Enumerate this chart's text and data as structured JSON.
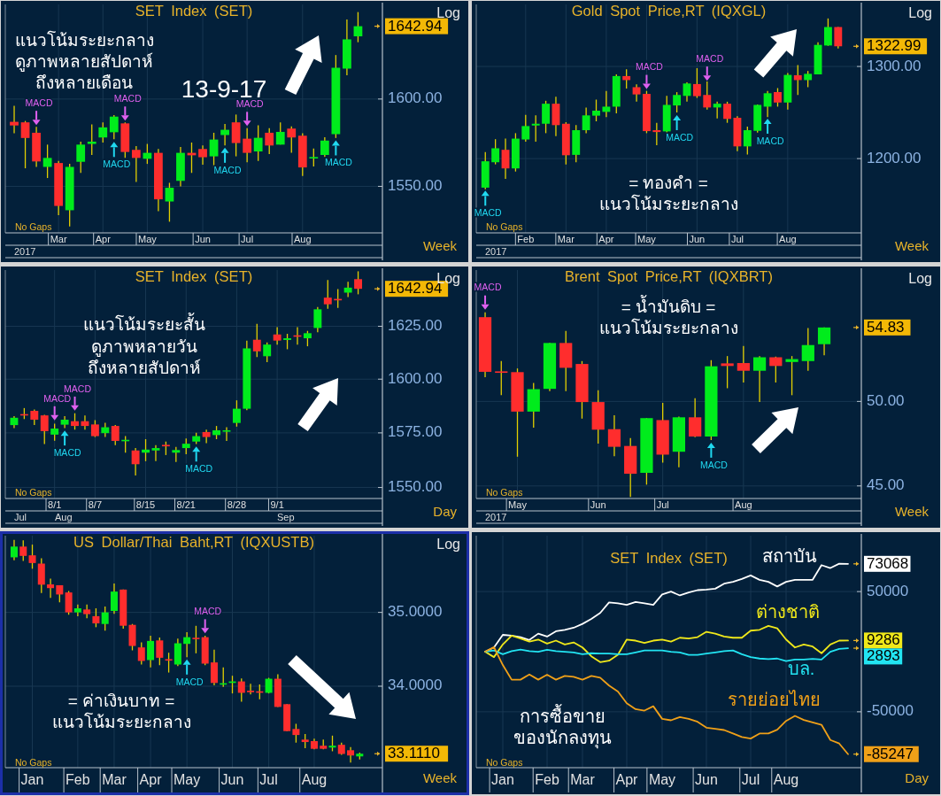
{
  "chart_data": [
    {
      "type": "candlestick",
      "title": "SET Index (SET)",
      "ylabel": "Log",
      "xlabel": "Week",
      "log": true,
      "grid": true,
      "marker": "triangle",
      "ylim": [
        1524,
        1656
      ],
      "yticks": [
        {
          "value": 1550,
          "label": "1550.00"
        },
        {
          "value": 1600,
          "label": "1600.00"
        }
      ],
      "categories": [
        null,
        null,
        null,
        null,
        "Mar",
        null,
        null,
        null,
        "Apr",
        null,
        null,
        null,
        "May",
        null,
        null,
        null,
        null,
        "Jun",
        null,
        null,
        null,
        "Jul",
        null,
        null,
        null,
        null,
        "Aug",
        null,
        null,
        null,
        null,
        null
      ],
      "ohlc": [
        [
          1586.8,
          1596.1,
          1580.2,
          1584.7
        ],
        [
          1586.5,
          1587.3,
          1560.2,
          1577.5
        ],
        [
          1580.5,
          1583.9,
          1561.0,
          1564.1
        ],
        [
          1561.0,
          1573.7,
          1554.7,
          1566.1
        ],
        [
          1563.2,
          1564.4,
          1533.9,
          1539.0
        ],
        [
          1536.6,
          1562.7,
          1527.6,
          1561.0
        ],
        [
          1563.9,
          1575.4,
          1557.6,
          1573.7
        ],
        [
          1574.1,
          1585.3,
          1567.8,
          1575.4
        ],
        [
          1577.8,
          1586.5,
          1574.9,
          1583.6
        ],
        [
          1580.8,
          1590.7,
          1576.8,
          1589.8
        ],
        [
          1585.9,
          1586.5,
          1566.1,
          1569.5
        ],
        [
          1570.7,
          1572.9,
          1552.5,
          1566.1
        ],
        [
          1565.6,
          1574.1,
          1562.7,
          1569.0
        ],
        [
          1569.0,
          1571.2,
          1536.1,
          1542.7
        ],
        [
          1541.5,
          1552.0,
          1530.2,
          1549.2
        ],
        [
          1553.1,
          1572.4,
          1550.0,
          1569.0
        ],
        [
          1569.0,
          1574.9,
          1557.6,
          1567.6
        ],
        [
          1571.2,
          1573.2,
          1562.2,
          1566.5
        ],
        [
          1567.0,
          1580.5,
          1560.5,
          1576.6
        ],
        [
          1579.2,
          1585.6,
          1573.2,
          1582.2
        ],
        [
          1586.5,
          1591.0,
          1567.0,
          1574.6
        ],
        [
          1577.1,
          1583.1,
          1563.6,
          1569.0
        ],
        [
          1569.8,
          1584.8,
          1564.4,
          1577.6
        ],
        [
          1580.5,
          1583.1,
          1568.3,
          1573.2
        ],
        [
          1573.7,
          1586.5,
          1573.7,
          1581.0
        ],
        [
          1582.9,
          1584.2,
          1569.0,
          1577.8
        ],
        [
          1578.8,
          1580.2,
          1555.9,
          1560.7
        ],
        [
          1565.8,
          1571.5,
          1561.3,
          1566.6
        ],
        [
          1567.8,
          1577.9,
          1566.6,
          1576.0
        ],
        [
          1579.7,
          1625.8,
          1577.5,
          1618.3
        ],
        [
          1617.8,
          1647.0,
          1613.9,
          1635.1
        ],
        [
          1636.9,
          1651.4,
          1633.4,
          1642.94
        ]
      ],
      "series": [
        {
          "type": "scatter",
          "name": "MACD",
          "color": "#e060f0",
          "values": [
            null,
            null,
            1586.5,
            null,
            null,
            null,
            null,
            null,
            null,
            null,
            1589.0,
            null,
            null,
            null,
            null,
            null,
            null,
            null,
            null,
            null,
            null,
            1585.9,
            null,
            null,
            null,
            null,
            null,
            null,
            null,
            null,
            null,
            null
          ]
        },
        {
          "type": "scatter",
          "name": "MACD",
          "color": "#20d8f0",
          "values": [
            null,
            null,
            null,
            null,
            null,
            null,
            null,
            null,
            null,
            1573.7,
            null,
            null,
            null,
            null,
            null,
            null,
            null,
            null,
            null,
            1570.4,
            null,
            null,
            null,
            null,
            null,
            null,
            null,
            null,
            null,
            1574.6,
            null,
            null
          ]
        }
      ],
      "annotations": [
        "แนวโน้มระยะกลาง",
        "ดูภาพหลายสัปดาห์",
        "ถึงหลายเดือน",
        "13-9-17",
        "No Gaps",
        "2017",
        "1642.94"
      ]
    },
    {
      "type": "candlestick",
      "title": "Gold Spot Price,RT (IQXGL)",
      "ylabel": "Log",
      "xlabel": "Week",
      "log": true,
      "grid": true,
      "marker": "triangle",
      "ylim": [
        1125,
        1372
      ],
      "yticks": [
        {
          "value": 1200,
          "label": "1200.00"
        },
        {
          "value": 1300,
          "label": "1300.00"
        }
      ],
      "categories": [
        null,
        null,
        null,
        null,
        "Feb",
        null,
        null,
        null,
        "Mar",
        null,
        null,
        null,
        "Apr",
        null,
        null,
        null,
        "May",
        null,
        null,
        null,
        null,
        "Jun",
        null,
        null,
        null,
        "Jul",
        null,
        null,
        null,
        null,
        "Aug",
        null,
        null,
        null,
        null,
        null
      ],
      "ohlc": [
        [
          1170.1,
          1206.7,
          1168.5,
          1197.2
        ],
        [
          1196.2,
          1220.4,
          1194.0,
          1210.8
        ],
        [
          1209.2,
          1221.0,
          1179.0,
          1189.8
        ],
        [
          1189.8,
          1226.8,
          1186.6,
          1221.0
        ],
        [
          1220.1,
          1246.5,
          1217.8,
          1234.4
        ],
        [
          1235.0,
          1245.9,
          1217.8,
          1236.9
        ],
        [
          1236.9,
          1261.8,
          1226.8,
          1258.6
        ],
        [
          1258.6,
          1266.3,
          1223.6,
          1235.4
        ],
        [
          1236.9,
          1238.6,
          1193.9,
          1203.5
        ],
        [
          1203.9,
          1235.4,
          1196.2,
          1230.0
        ],
        [
          1230.0,
          1254.5,
          1226.8,
          1245.9
        ],
        [
          1245.6,
          1263.1,
          1239.5,
          1251.0
        ],
        [
          1249.7,
          1272.6,
          1244.0,
          1255.4
        ],
        [
          1255.4,
          1291.1,
          1248.1,
          1289.2
        ],
        [
          1289.2,
          1296.8,
          1275.2,
          1284.7
        ],
        [
          1276.8,
          1280.0,
          1260.8,
          1268.8
        ],
        [
          1269.4,
          1272.6,
          1226.8,
          1229.0
        ],
        [
          1230.0,
          1237.9,
          1214.0,
          1228.0
        ],
        [
          1228.7,
          1267.2,
          1227.4,
          1257.3
        ],
        [
          1256.7,
          1271.3,
          1249.1,
          1268.2
        ],
        [
          1267.2,
          1282.2,
          1260.8,
          1280.9
        ],
        [
          1280.3,
          1298.1,
          1265.0,
          1266.9
        ],
        [
          1268.2,
          1283.1,
          1252.3,
          1254.5
        ],
        [
          1254.5,
          1260.8,
          1242.7,
          1258.6
        ],
        [
          1258.6,
          1260.8,
          1237.9,
          1242.1
        ],
        [
          1243.3,
          1244.9,
          1207.7,
          1212.8
        ],
        [
          1212.8,
          1233.8,
          1204.2,
          1230.0
        ],
        [
          1229.3,
          1257.7,
          1227.4,
          1257.3
        ],
        [
          1255.4,
          1272.6,
          1244.0,
          1270.1
        ],
        [
          1271.4,
          1275.8,
          1255.4,
          1259.9
        ],
        [
          1259.9,
          1292.7,
          1252.3,
          1290.5
        ],
        [
          1290.1,
          1301.6,
          1268.2,
          1284.7
        ],
        [
          1284.7,
          1294.9,
          1276.8,
          1291.7
        ],
        [
          1291.1,
          1327.7,
          1291.1,
          1324.6
        ],
        [
          1323.9,
          1355.4,
          1323.6,
          1345.3
        ],
        [
          1345.3,
          1345.3,
          1320.4,
          1322.99
        ]
      ],
      "series": [
        {
          "type": "scatter",
          "name": "MACD",
          "color": "#e060f0",
          "values": [
            null,
            null,
            null,
            null,
            null,
            null,
            null,
            null,
            null,
            null,
            null,
            null,
            null,
            null,
            null,
            null,
            1277.7,
            null,
            null,
            null,
            null,
            null,
            1287.0,
            null,
            null,
            null,
            null,
            null,
            null,
            null,
            null,
            null,
            null,
            null,
            null,
            null
          ]
        },
        {
          "type": "scatter",
          "name": "MACD",
          "color": "#20d8f0",
          "values": [
            1164.3,
            null,
            null,
            null,
            null,
            null,
            null,
            null,
            null,
            null,
            null,
            null,
            null,
            null,
            null,
            null,
            null,
            null,
            null,
            1243.3,
            null,
            null,
            null,
            null,
            null,
            null,
            null,
            null,
            1239.5,
            null,
            null,
            null,
            null,
            null,
            null,
            null
          ]
        }
      ],
      "annotations": [
        "= ทองคำ =",
        "แนวโน้มระยะกลาง",
        "No Gaps",
        "2017",
        "1322.99"
      ]
    },
    {
      "type": "candlestick",
      "title": "SET Index (SET)",
      "ylabel": "Log",
      "xlabel": "Day",
      "log": true,
      "grid": true,
      "marker": "triangle",
      "ylim": [
        1545,
        1652
      ],
      "yticks": [
        {
          "value": 1550,
          "label": "1550.00"
        },
        {
          "value": 1575,
          "label": "1575.00"
        },
        {
          "value": 1600,
          "label": "1600.00"
        },
        {
          "value": 1625,
          "label": "1625.00"
        }
      ],
      "categories": [
        null,
        null,
        null,
        null,
        "8/1",
        null,
        null,
        null,
        "8/7",
        null,
        null,
        null,
        null,
        "8/15",
        null,
        null,
        null,
        "8/21",
        null,
        null,
        null,
        null,
        "8/28",
        null,
        null,
        null,
        "9/1",
        null,
        null,
        null,
        null,
        null,
        null,
        null,
        null
      ],
      "ohlc": [
        [
          1578.6,
          1582.7,
          1577.2,
          1582.0
        ],
        [
          1583.7,
          1586.5,
          1581.4,
          1583.1
        ],
        [
          1585.2,
          1585.8,
          1578.6,
          1581.1
        ],
        [
          1583.1,
          1583.4,
          1569.9,
          1575.8
        ],
        [
          1574.2,
          1579.3,
          1571.4,
          1577.0
        ],
        [
          1578.8,
          1582.7,
          1577.2,
          1581.1
        ],
        [
          1580.4,
          1584.1,
          1576.5,
          1578.2
        ],
        [
          1580.4,
          1583.1,
          1576.5,
          1578.2
        ],
        [
          1578.9,
          1580.9,
          1573.1,
          1573.5
        ],
        [
          1574.9,
          1579.7,
          1573.1,
          1577.6
        ],
        [
          1578.2,
          1578.6,
          1569.3,
          1571.3
        ],
        [
          1571.3,
          1573.5,
          1565.9,
          1571.8
        ],
        [
          1566.9,
          1568.0,
          1555.5,
          1560.6
        ],
        [
          1565.9,
          1572.1,
          1562.0,
          1567.3
        ],
        [
          1566.9,
          1569.3,
          1562.0,
          1568.0
        ],
        [
          1569.5,
          1571.0,
          1564.8,
          1568.8
        ],
        [
          1565.9,
          1568.5,
          1561.6,
          1567.1
        ],
        [
          1568.0,
          1572.4,
          1565.2,
          1570.0
        ],
        [
          1571.0,
          1575.1,
          1569.9,
          1573.5
        ],
        [
          1575.4,
          1576.5,
          1570.3,
          1573.1
        ],
        [
          1574.0,
          1578.2,
          1572.1,
          1576.2
        ],
        [
          1575.6,
          1577.6,
          1571.3,
          1576.2
        ],
        [
          1579.6,
          1590.1,
          1577.9,
          1586.2
        ],
        [
          1586.2,
          1618.2,
          1585.5,
          1614.5
        ],
        [
          1618.6,
          1626.2,
          1610.4,
          1613.1
        ],
        [
          1610.8,
          1617.3,
          1608.0,
          1616.3
        ],
        [
          1621.1,
          1624.6,
          1616.3,
          1618.2
        ],
        [
          1618.5,
          1621.4,
          1614.1,
          1619.3
        ],
        [
          1620.7,
          1624.6,
          1616.3,
          1620.3
        ],
        [
          1619.3,
          1622.8,
          1615.5,
          1621.7
        ],
        [
          1624.2,
          1634.2,
          1622.1,
          1633.1
        ],
        [
          1638.7,
          1647.2,
          1633.4,
          1635.5
        ],
        [
          1638.1,
          1642.8,
          1633.8,
          1637.4
        ],
        [
          1641.1,
          1646.3,
          1639.0,
          1643.5
        ],
        [
          1647.6,
          1651.4,
          1640.3,
          1642.94
        ]
      ],
      "series": [
        {
          "type": "scatter",
          "name": "MACD",
          "color": "#e060f0",
          "values": [
            null,
            null,
            null,
            null,
            1582.0,
            null,
            1586.5,
            null,
            null,
            null,
            null,
            null,
            null,
            null,
            null,
            null,
            null,
            null,
            null,
            null,
            null,
            null,
            null,
            null,
            null,
            null,
            null,
            null,
            null,
            null,
            null,
            null,
            null,
            null,
            null
          ]
        },
        {
          "type": "scatter",
          "name": "MACD",
          "color": "#20d8f0",
          "values": [
            null,
            null,
            null,
            null,
            null,
            1574.9,
            null,
            null,
            null,
            null,
            null,
            null,
            null,
            null,
            null,
            null,
            null,
            null,
            1567.5,
            null,
            null,
            null,
            null,
            null,
            null,
            null,
            null,
            null,
            null,
            null,
            null,
            null,
            null,
            null,
            null
          ]
        }
      ],
      "annotations": [
        "แนวโน้มระยะสั้น",
        "ดูภาพหลายวัน",
        "ถึงหลายสัปดาห์",
        "No Gaps",
        "Jul",
        "Aug",
        "Sep",
        "1642.94"
      ]
    },
    {
      "type": "candlestick",
      "title": "Brent Spot Price,RT (IQXBRT)",
      "ylabel": "Log",
      "xlabel": "Week",
      "log": true,
      "grid": true,
      "marker": "triangle",
      "ylim": [
        44.3,
        58.9
      ],
      "yticks": [
        {
          "value": 45,
          "label": "45.00"
        },
        {
          "value": 50,
          "label": "50.00"
        }
      ],
      "categories": [
        null,
        null,
        "May",
        null,
        null,
        null,
        null,
        "Jun",
        null,
        null,
        null,
        "Jul",
        null,
        null,
        null,
        null,
        "Aug",
        null,
        null,
        null,
        null,
        null
      ],
      "ohlc": [
        [
          55.54,
          55.88,
          51.54,
          51.88
        ],
        [
          51.91,
          52.58,
          50.39,
          51.82
        ],
        [
          51.86,
          52.1,
          46.67,
          49.37
        ],
        [
          49.37,
          51.16,
          48.39,
          50.77
        ],
        [
          50.79,
          53.78,
          50.64,
          53.78
        ],
        [
          53.78,
          54.59,
          50.64,
          52.14
        ],
        [
          52.39,
          52.58,
          48.94,
          49.96
        ],
        [
          49.96,
          50.7,
          47.44,
          48.27
        ],
        [
          48.3,
          49.15,
          46.7,
          47.25
        ],
        [
          47.3,
          47.77,
          44.38,
          45.69
        ],
        [
          45.74,
          48.97,
          45.07,
          48.97
        ],
        [
          48.85,
          49.91,
          46.33,
          46.79
        ],
        [
          46.96,
          49.06,
          46.06,
          49.02
        ],
        [
          49.02,
          50.2,
          47.82,
          47.86
        ],
        [
          47.86,
          52.64,
          47.65,
          52.24
        ],
        [
          52.43,
          52.91,
          50.83,
          52.26
        ],
        [
          52.45,
          53.58,
          51.2,
          51.95
        ],
        [
          51.95,
          52.91,
          49.96,
          52.83
        ],
        [
          52.83,
          52.87,
          51.2,
          52.26
        ],
        [
          52.52,
          52.91,
          50.39,
          52.71
        ],
        [
          52.58,
          54.79,
          51.95,
          53.64
        ],
        [
          53.7,
          54.83,
          52.96,
          54.83
        ]
      ],
      "series": [
        {
          "type": "scatter",
          "name": "MACD",
          "color": "#e060f0",
          "values": [
            56.25,
            null,
            null,
            null,
            null,
            null,
            null,
            null,
            null,
            null,
            null,
            null,
            null,
            null,
            null,
            null,
            null,
            null,
            null,
            null,
            null,
            null
          ]
        },
        {
          "type": "scatter",
          "name": "MACD",
          "color": "#20d8f0",
          "values": [
            null,
            null,
            null,
            null,
            null,
            null,
            null,
            null,
            null,
            null,
            null,
            null,
            null,
            null,
            47.34,
            null,
            null,
            null,
            null,
            null,
            null,
            null
          ]
        }
      ],
      "annotations": [
        "= น้ำมันดิบ =",
        "แนวโน้มระยะกลาง",
        "No Gaps",
        "2017",
        "54.83"
      ]
    },
    {
      "type": "candlestick",
      "title": "US Dollar/Thai Baht,RT (IQXUSTB)",
      "ylabel": "Log",
      "xlabel": "Week",
      "log": true,
      "grid": true,
      "marker": "triangle",
      "ylim": [
        32.93,
        36.07
      ],
      "yticks": [
        {
          "value": 34,
          "label": "34.0000"
        },
        {
          "value": 35,
          "label": "35.0000"
        }
      ],
      "categories": [
        null,
        null,
        "Jan",
        null,
        null,
        null,
        null,
        "Feb",
        null,
        null,
        null,
        "Mar",
        null,
        null,
        null,
        "Apr",
        null,
        null,
        null,
        "May",
        null,
        null,
        null,
        null,
        "Jun",
        null,
        null,
        null,
        "Jul",
        null,
        null,
        null,
        null,
        "Aug",
        null,
        null,
        null,
        null,
        null
      ],
      "ohlc": [
        [
          35.765,
          36.012,
          35.725,
          35.916
        ],
        [
          35.916,
          36.004,
          35.713,
          35.785
        ],
        [
          35.793,
          35.944,
          35.605,
          35.685
        ],
        [
          35.677,
          35.753,
          35.267,
          35.383
        ],
        [
          35.387,
          35.466,
          35.199,
          35.335
        ],
        [
          35.375,
          35.375,
          35.14,
          35.247
        ],
        [
          35.275,
          35.295,
          34.968,
          35.0
        ],
        [
          35.0,
          35.108,
          34.948,
          35.056
        ],
        [
          35.04,
          35.108,
          34.92,
          34.976
        ],
        [
          34.948,
          35.056,
          34.797,
          34.849
        ],
        [
          34.841,
          35.08,
          34.749,
          35.0
        ],
        [
          35.02,
          35.398,
          34.98,
          35.287
        ],
        [
          35.315,
          35.315,
          34.777,
          34.817
        ],
        [
          34.829,
          34.841,
          34.482,
          34.542
        ],
        [
          34.522,
          34.59,
          34.291,
          34.339
        ],
        [
          34.351,
          34.681,
          34.251,
          34.61
        ],
        [
          34.617,
          34.657,
          34.283,
          34.382
        ],
        [
          34.363,
          34.45,
          34.183,
          34.347
        ],
        [
          34.291,
          34.641,
          34.271,
          34.578
        ],
        [
          34.57,
          34.729,
          34.39,
          34.661
        ],
        [
          34.653,
          34.816,
          34.442,
          34.637
        ],
        [
          34.661,
          34.681,
          34.283,
          34.303
        ],
        [
          34.319,
          34.49,
          34.012,
          34.044
        ],
        [
          34.024,
          34.251,
          33.992,
          34.04
        ],
        [
          34.044,
          34.14,
          33.904,
          34.064
        ],
        [
          34.064,
          34.104,
          33.793,
          33.912
        ],
        [
          33.94,
          34.032,
          33.892,
          33.92
        ],
        [
          33.932,
          34.024,
          33.825,
          33.916
        ],
        [
          33.912,
          34.112,
          33.904,
          34.1
        ],
        [
          34.1,
          34.159,
          33.725,
          33.725
        ],
        [
          33.761,
          33.761,
          33.406,
          33.406
        ],
        [
          33.434,
          33.502,
          33.255,
          33.355
        ],
        [
          33.295,
          33.367,
          33.183,
          33.263
        ],
        [
          33.275,
          33.307,
          33.167,
          33.175
        ],
        [
          33.215,
          33.295,
          33.167,
          33.175
        ],
        [
          33.191,
          33.347,
          33.143,
          33.215
        ],
        [
          33.227,
          33.255,
          33.096,
          33.108
        ],
        [
          33.156,
          33.196,
          32.996,
          33.088
        ],
        [
          33.076,
          33.124,
          33.036,
          33.111
        ]
      ],
      "series": [
        {
          "type": "scatter",
          "name": "MACD",
          "color": "#e060f0",
          "values": [
            null,
            null,
            null,
            null,
            null,
            null,
            null,
            null,
            null,
            null,
            null,
            null,
            null,
            null,
            null,
            null,
            null,
            null,
            null,
            null,
            null,
            34.749,
            null,
            null,
            null,
            null,
            null,
            null,
            null,
            null,
            null,
            null,
            null,
            null,
            null,
            null,
            null,
            null,
            null
          ]
        },
        {
          "type": "scatter",
          "name": "MACD",
          "color": "#20d8f0",
          "values": [
            null,
            null,
            null,
            null,
            null,
            null,
            null,
            null,
            null,
            null,
            null,
            null,
            null,
            null,
            null,
            null,
            null,
            null,
            null,
            34.323,
            null,
            null,
            null,
            null,
            null,
            null,
            null,
            null,
            null,
            null,
            null,
            null,
            null,
            null,
            null,
            null,
            null,
            null,
            null
          ]
        }
      ],
      "annotations": [
        "= ค่าเงินบาท =",
        "แนวโน้มระยะกลาง",
        "No Gaps",
        "33.1110"
      ]
    },
    {
      "type": "line",
      "title": "SET Index (SET)",
      "xlabel": "Day",
      "grid": true,
      "ylim": [
        -96500,
        96500
      ],
      "yticks": [
        -50000,
        50000
      ],
      "categories": [
        null,
        null,
        "Jan",
        null,
        null,
        null,
        null,
        "Feb",
        null,
        null,
        null,
        "Mar",
        null,
        null,
        null,
        null,
        "Apr",
        null,
        null,
        null,
        "May",
        null,
        null,
        null,
        null,
        "Jun",
        null,
        null,
        null,
        null,
        "Jul",
        null,
        null,
        null,
        "Aug",
        null,
        null,
        null,
        null,
        null,
        null,
        null
      ],
      "series": [
        {
          "name": "สถาบัน",
          "color": "#ffffff",
          "values": [
            0,
            3500,
            14000,
            13300,
            12100,
            9700,
            15000,
            12600,
            17000,
            18200,
            19900,
            23100,
            27300,
            32200,
            41000,
            40200,
            39000,
            41400,
            40200,
            39000,
            47600,
            50000,
            46800,
            49300,
            51200,
            51700,
            52400,
            56600,
            58100,
            60500,
            63400,
            59800,
            58100,
            54200,
            58100,
            59800,
            59800,
            59800,
            72000,
            69600,
            73200,
            73068
          ]
        },
        {
          "name": "ต่างชาติ",
          "color": "#f0e81a",
          "values": [
            0,
            -4500,
            6000,
            13300,
            10900,
            8400,
            10100,
            6700,
            9200,
            6000,
            7700,
            3500,
            -3800,
            -8700,
            -7500,
            -2600,
            10100,
            9200,
            7200,
            9200,
            10100,
            8400,
            11600,
            10900,
            12100,
            16500,
            15000,
            12600,
            11600,
            11600,
            17500,
            18200,
            21400,
            19400,
            10100,
            3500,
            6000,
            4300,
            -1300,
            6000,
            9200,
            9286
          ]
        },
        {
          "name": "บล.",
          "color": "#22e4f2",
          "values": [
            0,
            1000,
            -2100,
            400,
            1800,
            400,
            -100,
            1600,
            400,
            -100,
            -600,
            -2100,
            -1300,
            -1600,
            -1600,
            -2100,
            -2100,
            -600,
            1000,
            1000,
            1000,
            -100,
            -600,
            -2600,
            -2600,
            -1600,
            -600,
            400,
            1000,
            -2100,
            -4500,
            -5700,
            -6200,
            -5700,
            -7900,
            -6500,
            -6500,
            -6000,
            -6500,
            -100,
            2300,
            2893
          ]
        },
        {
          "name": "รายย่อยไทย",
          "color": "#f0a018",
          "values": [
            0,
            3800,
            -11100,
            -23300,
            -23300,
            -18900,
            -23300,
            -19200,
            -23300,
            -20200,
            -20900,
            -23300,
            -20200,
            -21600,
            -28200,
            -33100,
            -42900,
            -47800,
            -49000,
            -45400,
            -55900,
            -57100,
            -54400,
            -55900,
            -58300,
            -63200,
            -64200,
            -65200,
            -68100,
            -71000,
            -72300,
            -68100,
            -68100,
            -64900,
            -57600,
            -53400,
            -56800,
            -58800,
            -60800,
            -73500,
            -76400,
            -85247
          ]
        }
      ],
      "annotations": [
        "การซื้อขาย",
        "ของนักลงทุน",
        "No Gaps",
        "73068",
        "9286",
        "2893",
        "-85247"
      ]
    }
  ]
}
